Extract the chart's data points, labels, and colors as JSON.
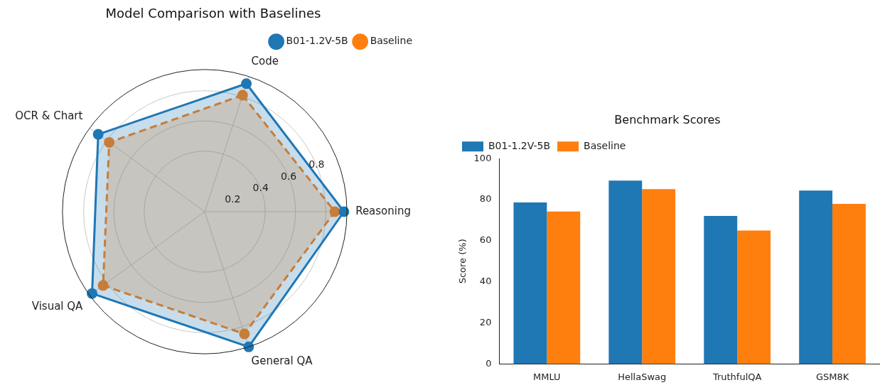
{
  "chart_data": [
    {
      "type": "radar",
      "title": "Model Comparison with Baselines",
      "categories": [
        "Code",
        "Reasoning",
        "General QA",
        "Visual QA",
        "OCR & Chart"
      ],
      "ylim": [
        0,
        0.94
      ],
      "yticks": [
        0.2,
        0.4,
        0.6,
        0.8
      ],
      "grid": true,
      "legend": "top right",
      "marker": "circle",
      "series": [
        {
          "name": "B01-1.2V-5B",
          "color": "#1f77b4",
          "line_style": "solid",
          "values": [
            0.89,
            0.92,
            0.94,
            0.92,
            0.87
          ]
        },
        {
          "name": "Baseline",
          "color": "#ff7f0e",
          "line_style": "dashed",
          "values": [
            0.81,
            0.86,
            0.85,
            0.83,
            0.78
          ]
        }
      ]
    },
    {
      "type": "bar",
      "title": "Benchmark Scores",
      "ylabel": "Score (%)",
      "categories": [
        "MMLU",
        "HellaSwag",
        "TruthfulQA",
        "GSM8K"
      ],
      "ylim": [
        0,
        100
      ],
      "yticks": [
        0,
        20,
        40,
        60,
        80,
        100
      ],
      "grid": false,
      "legend": "top left",
      "series": [
        {
          "name": "B01-1.2V-5B",
          "color": "#1f77b4",
          "values": [
            78.6,
            89.3,
            72.1,
            84.4
          ]
        },
        {
          "name": "Baseline",
          "color": "#ff7f0e",
          "values": [
            74.2,
            85.1,
            65.0,
            77.9
          ]
        }
      ]
    }
  ]
}
